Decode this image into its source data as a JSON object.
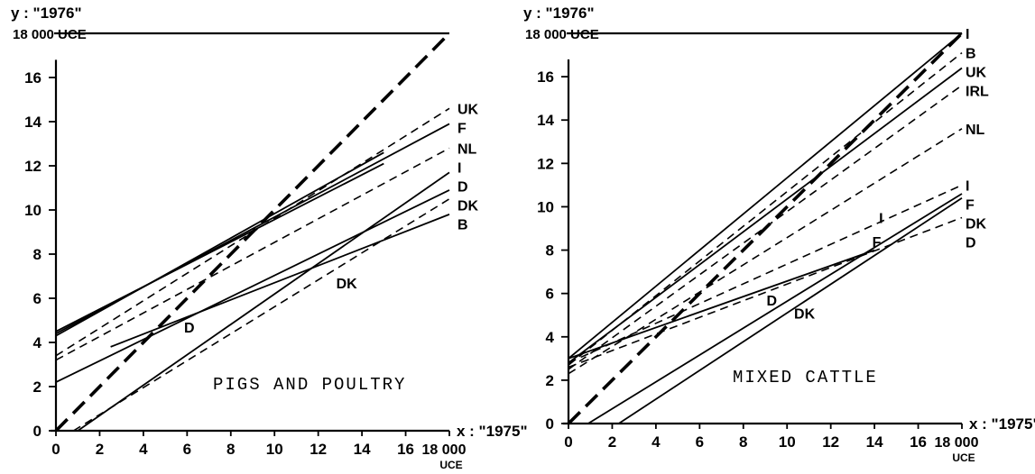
{
  "chart_data": [
    {
      "type": "line",
      "title": "PIGS AND POULTRY",
      "ylabel": "y : \"1976\"",
      "xlabel": "x : \"1975\"",
      "y_top_label": "18 000 UCE",
      "x_end_label": "18 000",
      "x_end_unit": "UCE",
      "xlim": [
        0,
        18
      ],
      "ylim": [
        0,
        18
      ],
      "x_ticks": [
        "0",
        "2",
        "4",
        "6",
        "8",
        "10",
        "12",
        "14",
        "16"
      ],
      "y_ticks": [
        "0",
        "2",
        "4",
        "6",
        "8",
        "10",
        "12",
        "14",
        "16"
      ],
      "grid": false,
      "series": [
        {
          "name": "",
          "style": "diagonal",
          "x": [
            0,
            18
          ],
          "y": [
            0,
            18
          ]
        },
        {
          "name": "UK",
          "style": "dashed",
          "x": [
            0,
            18
          ],
          "y": [
            3.4,
            14.6
          ]
        },
        {
          "name": "F",
          "style": "solid",
          "x": [
            0,
            18
          ],
          "y": [
            4.4,
            13.9
          ]
        },
        {
          "name": "I",
          "style": "solid",
          "x": [
            0,
            15
          ],
          "y": [
            4.3,
            12.6
          ]
        },
        {
          "name": "NL",
          "style": "dashed",
          "x": [
            0,
            18
          ],
          "y": [
            3.2,
            12.8
          ]
        },
        {
          "name": "D",
          "style": "solid",
          "x": [
            1,
            18
          ],
          "y": [
            0,
            11.7
          ]
        },
        {
          "name": "DK",
          "style": "solid",
          "x": [
            0,
            18
          ],
          "y": [
            2.2,
            10.9
          ]
        },
        {
          "name": "B",
          "style": "solid",
          "x": [
            2.5,
            18
          ],
          "y": [
            3.8,
            9.8
          ]
        },
        {
          "name": "",
          "style": "dashed",
          "x": [
            0.8,
            18
          ],
          "y": [
            0,
            10.5
          ]
        },
        {
          "name": "",
          "style": "solid",
          "x": [
            0,
            15
          ],
          "y": [
            4.5,
            12.1
          ]
        }
      ],
      "annotations": [
        {
          "text": "D",
          "x": 6.1,
          "y": 4.7
        },
        {
          "text": "DK",
          "x": 13.3,
          "y": 6.7
        }
      ]
    },
    {
      "type": "line",
      "title": "MIXED CATTLE",
      "ylabel": "y : \"1976\"",
      "xlabel": "x : \"1975\"",
      "y_top_label": "18 000 UCE",
      "x_end_label": "18 000",
      "x_end_unit": "UCE",
      "xlim": [
        0,
        18
      ],
      "ylim": [
        0,
        18
      ],
      "x_ticks": [
        "0",
        "2",
        "4",
        "6",
        "8",
        "10",
        "12",
        "14",
        "16"
      ],
      "y_ticks": [
        "0",
        "2",
        "4",
        "6",
        "8",
        "10",
        "12",
        "14",
        "16"
      ],
      "grid": false,
      "series": [
        {
          "name": "",
          "style": "diagonal",
          "x": [
            0,
            18
          ],
          "y": [
            0,
            18
          ]
        },
        {
          "name": "I",
          "style": "solid",
          "x": [
            0,
            18
          ],
          "y": [
            3.0,
            18.0
          ]
        },
        {
          "name": "B",
          "style": "dashed",
          "x": [
            0,
            18
          ],
          "y": [
            2.7,
            17.1
          ]
        },
        {
          "name": "UK",
          "style": "solid",
          "x": [
            0,
            18
          ],
          "y": [
            2.8,
            16.4
          ]
        },
        {
          "name": "IRL",
          "style": "dashed",
          "x": [
            0,
            18
          ],
          "y": [
            2.5,
            15.6
          ]
        },
        {
          "name": "NL",
          "style": "dashed",
          "x": [
            0,
            18
          ],
          "y": [
            2.3,
            13.6
          ]
        },
        {
          "name": "I",
          "style": "dashed",
          "x": [
            0,
            18
          ],
          "y": [
            2.8,
            11.0
          ]
        },
        {
          "name": "F",
          "style": "solid",
          "x": [
            0.9,
            18
          ],
          "y": [
            0,
            10.6
          ]
        },
        {
          "name": "DK",
          "style": "solid",
          "x": [
            2.3,
            18
          ],
          "y": [
            0,
            10.4
          ]
        },
        {
          "name": "D",
          "style": "dashed",
          "x": [
            0,
            18
          ],
          "y": [
            2.6,
            9.5
          ]
        },
        {
          "name": "",
          "style": "solid",
          "x": [
            0,
            14
          ],
          "y": [
            3.0,
            8.0
          ]
        }
      ],
      "annotations": [
        {
          "text": "D",
          "x": 9.3,
          "y": 5.7
        },
        {
          "text": "DK",
          "x": 10.8,
          "y": 5.1
        },
        {
          "text": "I",
          "x": 14.3,
          "y": 9.5
        },
        {
          "text": "F",
          "x": 14.1,
          "y": 8.4
        }
      ]
    }
  ]
}
